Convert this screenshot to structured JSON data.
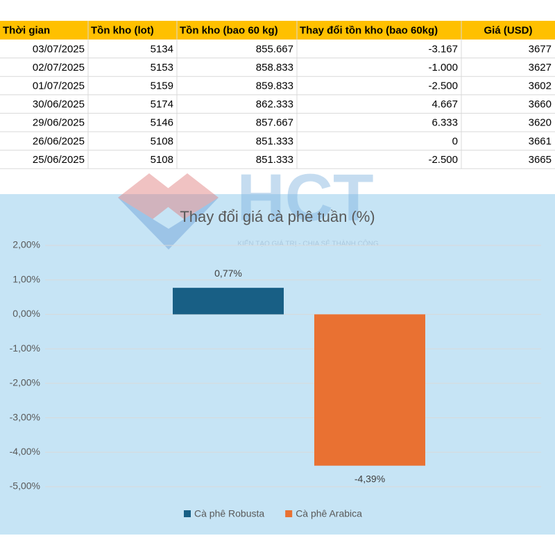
{
  "table": {
    "headers": [
      "Thời gian",
      "Tồn kho (lot)",
      "Tồn kho (bao 60 kg)",
      "Thay đổi tồn kho (bao 60kg)",
      "Giá (USD)"
    ],
    "rows": [
      [
        "03/07/2025",
        "5134",
        "855.667",
        "-3.167",
        "3677"
      ],
      [
        "02/07/2025",
        "5153",
        "858.833",
        "-1.000",
        "3627"
      ],
      [
        "01/07/2025",
        "5159",
        "859.833",
        "-2.500",
        "3602"
      ],
      [
        "30/06/2025",
        "5174",
        "862.333",
        "4.667",
        "3660"
      ],
      [
        "29/06/2025",
        "5146",
        "857.667",
        "6.333",
        "3620"
      ],
      [
        "26/06/2025",
        "5108",
        "851.333",
        "0",
        "3661"
      ],
      [
        "25/06/2025",
        "5108",
        "851.333",
        "-2.500",
        "3665"
      ]
    ]
  },
  "watermark": {
    "logo": "HCT",
    "tagline": "KIẾN TẠO GIÁ TRỊ - CHIA SẺ THÀNH CÔNG"
  },
  "chart_data": {
    "type": "bar",
    "title": "Thay đổi giá cà phê tuần (%)",
    "categories": [
      null
    ],
    "series": [
      {
        "name": "Cà phê Robusta",
        "color": "#185f85",
        "values": [
          0.77
        ],
        "value_labels": [
          "0,77%"
        ]
      },
      {
        "name": "Cà phê Arabica",
        "color": "#e97132",
        "values": [
          -4.39
        ],
        "value_labels": [
          "-4,39%"
        ]
      }
    ],
    "ylim": [
      -5,
      2
    ],
    "yticks": [
      {
        "value": 2,
        "label": "2,00%"
      },
      {
        "value": 1,
        "label": "1,00%"
      },
      {
        "value": 0,
        "label": "0,00%"
      },
      {
        "value": -1,
        "label": "-1,00%"
      },
      {
        "value": -2,
        "label": "-2,00%"
      },
      {
        "value": -3,
        "label": "-3,00%"
      },
      {
        "value": -4,
        "label": "-4,00%"
      },
      {
        "value": -5,
        "label": "-5,00%"
      }
    ],
    "grid": true,
    "legend": "bottom"
  }
}
